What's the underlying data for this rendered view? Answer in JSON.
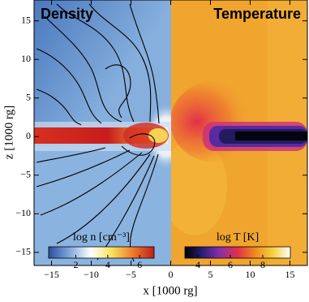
{
  "chart_data": {
    "type": "heatmap",
    "panels": [
      "Density",
      "Temperature"
    ],
    "xlabel": "x [1000 rg]",
    "ylabel": "z [1000 rg]",
    "xlim": [
      -17.2,
      17.2
    ],
    "ylim": [
      -16.7,
      17.7
    ],
    "xticks": [
      {
        "value": -15,
        "label": "−15"
      },
      {
        "value": -10,
        "label": "−10"
      },
      {
        "value": -5,
        "label": "−5"
      },
      0,
      5,
      10,
      15
    ],
    "yticks": [
      {
        "value": -15,
        "label": "−15"
      },
      {
        "value": -10,
        "label": "−10"
      },
      {
        "value": -5,
        "label": "−5"
      },
      0,
      5,
      10,
      15
    ],
    "colorbars": [
      {
        "label": "log n [cm⁻³]",
        "lim": [
          0.3,
          6.9
        ],
        "ticks": [
          2,
          4,
          6
        ],
        "colors": [
          "#2f4e9e",
          "#7fa9dc",
          "#ffffff",
          "#f7e25a",
          "#ee7b2a",
          "#c11d1d"
        ]
      },
      {
        "label": "log T [K]",
        "lim": [
          3.2,
          9.7
        ],
        "ticks": [
          4,
          6,
          8
        ],
        "colors": [
          "#000000",
          "#2a1d7a",
          "#8a2fa8",
          "#e0304a",
          "#f08a20",
          "#f5d040",
          "#ffffff"
        ]
      }
    ]
  }
}
